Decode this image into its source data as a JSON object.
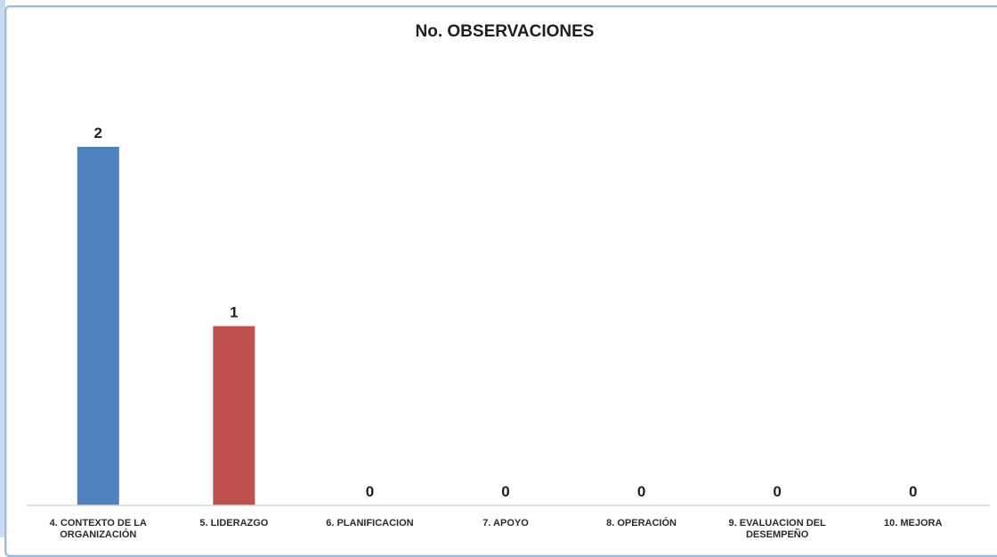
{
  "chart_data": {
    "type": "bar",
    "title": "No. OBSERVACIONES",
    "xlabel": "",
    "ylabel": "",
    "categories": [
      [
        "4. CONTEXTO DE LA",
        "ORGANIZACIÓN"
      ],
      [
        "5. LIDERAZGO"
      ],
      [
        "6. PLANIFICACION"
      ],
      [
        "7. APOYO"
      ],
      [
        "8. OPERACIÓN"
      ],
      [
        "9. EVALUACION DEL",
        "DESEMPEÑO"
      ],
      [
        "10. MEJORA"
      ]
    ],
    "values": [
      2,
      1,
      0,
      0,
      0,
      0,
      0
    ],
    "data_labels": [
      "2",
      "1",
      "0",
      "0",
      "0",
      "0",
      "0"
    ],
    "bar_colors": [
      "#4f81bd",
      "#c0504d",
      "#9bbb59",
      "#8064a2",
      "#4bacc6",
      "#f79646",
      "#2c4d75"
    ],
    "ylim": [
      0,
      2
    ],
    "grid": false,
    "legend": false
  },
  "colors": {
    "frame_border": "#9dbbd9",
    "axis": "#d9d9d9",
    "text": "#1f1f1f"
  }
}
